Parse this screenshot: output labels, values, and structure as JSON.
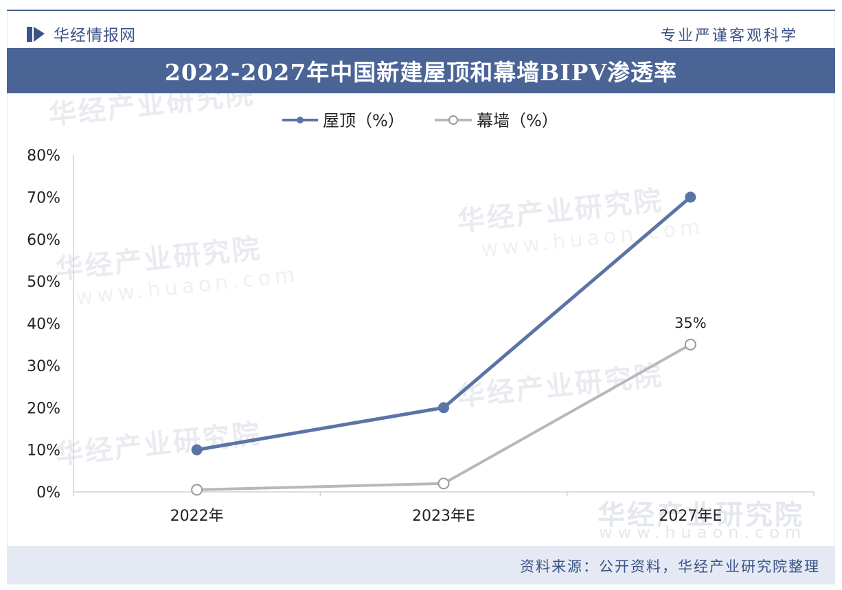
{
  "header": {
    "brand_name": "华经情报网",
    "slogan": "专业严谨客观科学"
  },
  "title": "2022-2027年中国新建屋顶和幕墙BIPV渗透率",
  "source": "资料来源：公开资料，华经产业研究院整理",
  "watermark": {
    "text": "华经产业研究院",
    "url": "www.huaon.com"
  },
  "colors": {
    "brand": "#4a6496",
    "series_roof": "#5b74a6",
    "series_curtain": "#b8b8b8"
  },
  "chart_data": {
    "type": "line",
    "categories": [
      "2022年",
      "2023年E",
      "2027年E"
    ],
    "series": [
      {
        "name": "屋顶（%）",
        "values": [
          10,
          20,
          70
        ],
        "marker": "filled"
      },
      {
        "name": "幕墙（%）",
        "values": [
          0.5,
          2,
          35
        ],
        "marker": "hollow",
        "data_labels": [
          "",
          "",
          "35%"
        ]
      }
    ],
    "ylim": [
      0,
      80
    ],
    "yticks": [
      "0%",
      "10%",
      "20%",
      "30%",
      "40%",
      "50%",
      "60%",
      "70%",
      "80%"
    ],
    "legend_position": "top-center",
    "grid": false
  }
}
